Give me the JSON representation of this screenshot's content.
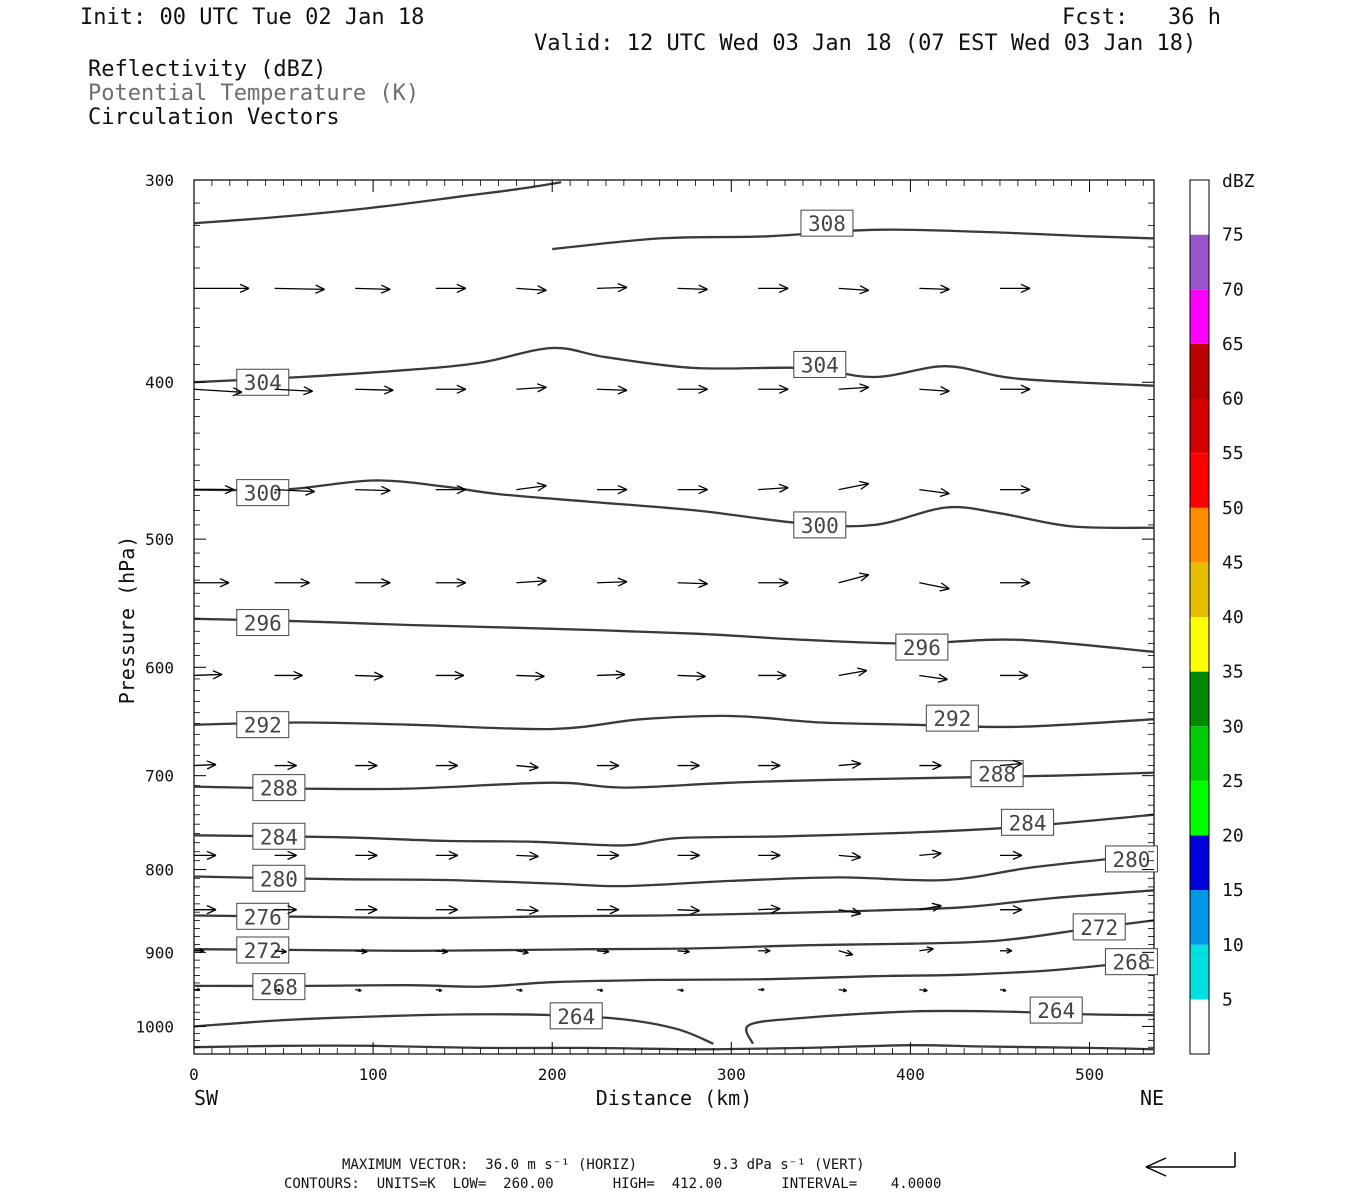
{
  "header": {
    "init": "Init: 00 UTC Tue 02 Jan 18",
    "fcst": "Fcst:   36 h",
    "valid": "Valid: 12 UTC Wed 03 Jan 18 (07 EST Wed 03 Jan 18)",
    "line1": "Reflectivity (dBZ)",
    "line2": "Potential Temperature (K)",
    "line3": "Circulation Vectors"
  },
  "footer": {
    "line1": "MAXIMUM VECTOR:  36.0 m s⁻¹ (HORIZ)         9.3 dPa s⁻¹ (VERT)",
    "line2": "CONTOURS:  UNITS=K  LOW=  260.00       HIGH=  412.00       INTERVAL=    4.0000"
  },
  "colors": {
    "contour": "#3a3a3a",
    "bands": [
      "#ffffff",
      "#00e0e0",
      "#0099e6",
      "#0000dd",
      "#00ff00",
      "#00cc00",
      "#008800",
      "#ffff00",
      "#e6bf00",
      "#ff8c00",
      "#ff0000",
      "#d40000",
      "#bb0000",
      "#ff00ff",
      "#9955cc",
      "#ffffff"
    ]
  },
  "chart_data": {
    "type": "contour",
    "xlabel": "Distance (km)",
    "ylabel": "Pressure (hPa)",
    "x_ticks": [
      "0",
      "100",
      "200",
      "300",
      "400",
      "500"
    ],
    "y_ticks": [
      "300",
      "400",
      "500",
      "600",
      "700",
      "800",
      "900",
      "1000"
    ],
    "xlim": [
      0,
      536
    ],
    "ylim": [
      1040,
      300
    ],
    "y_scale": "log",
    "left_end_label": "SW",
    "right_end_label": "NE",
    "colorbar": {
      "title": "dBZ",
      "ticks": [
        "5",
        "10",
        "15",
        "20",
        "25",
        "30",
        "35",
        "40",
        "45",
        "50",
        "55",
        "60",
        "65",
        "70",
        "75"
      ]
    },
    "contours": [
      {
        "label": "308",
        "label_at": [
          340,
          319
        ],
        "points": [
          [
            0,
            319
          ],
          [
            50,
            316
          ],
          [
            100,
            312
          ],
          [
            150,
            307
          ],
          [
            180,
            304
          ],
          [
            205,
            301
          ]
        ],
        "points2": [
          [
            200,
            331
          ],
          [
            260,
            326
          ],
          [
            320,
            325
          ],
          [
            380,
            322
          ],
          [
            440,
            323
          ],
          [
            500,
            325
          ],
          [
            536,
            326
          ]
        ]
      },
      {
        "label": "304",
        "label_at": [
          336,
          390
        ],
        "label2": "304",
        "label2_at": [
          25,
          400
        ],
        "points": [
          [
            0,
            400
          ],
          [
            60,
            397
          ],
          [
            120,
            393
          ],
          [
            160,
            389
          ],
          [
            200,
            381
          ],
          [
            230,
            386
          ],
          [
            280,
            392
          ],
          [
            340,
            392
          ],
          [
            380,
            397
          ],
          [
            420,
            391
          ],
          [
            460,
            398
          ],
          [
            536,
            402
          ]
        ]
      },
      {
        "label": "300",
        "label_at": [
          336,
          490
        ],
        "label2": "300",
        "label2_at": [
          25,
          468
        ],
        "points": [
          [
            0,
            466
          ],
          [
            50,
            466
          ],
          [
            100,
            460
          ],
          [
            140,
            464
          ],
          [
            170,
            469
          ],
          [
            220,
            474
          ],
          [
            280,
            480
          ],
          [
            340,
            489
          ],
          [
            380,
            490
          ],
          [
            420,
            478
          ],
          [
            450,
            482
          ],
          [
            490,
            491
          ],
          [
            536,
            492
          ]
        ]
      },
      {
        "label": "296",
        "label_at": [
          393,
          583
        ],
        "label2": "296",
        "label2_at": [
          25,
          563
        ],
        "points": [
          [
            0,
            560
          ],
          [
            60,
            562
          ],
          [
            120,
            565
          ],
          [
            200,
            568
          ],
          [
            280,
            572
          ],
          [
            340,
            577
          ],
          [
            400,
            580
          ],
          [
            460,
            577
          ],
          [
            536,
            587
          ]
        ]
      },
      {
        "label": "292",
        "label_at": [
          410,
          645
        ],
        "label2": "292",
        "label2_at": [
          25,
          651
        ],
        "points": [
          [
            0,
            651
          ],
          [
            60,
            649
          ],
          [
            120,
            651
          ],
          [
            200,
            655
          ],
          [
            250,
            646
          ],
          [
            300,
            643
          ],
          [
            350,
            649
          ],
          [
            400,
            651
          ],
          [
            460,
            653
          ],
          [
            536,
            646
          ]
        ]
      },
      {
        "label": "288",
        "label_at": [
          435,
          698
        ],
        "label2": "288",
        "label2_at": [
          34,
          712
        ],
        "points": [
          [
            0,
            711
          ],
          [
            60,
            713
          ],
          [
            120,
            713
          ],
          [
            200,
            707
          ],
          [
            240,
            712
          ],
          [
            300,
            707
          ],
          [
            360,
            704
          ],
          [
            420,
            702
          ],
          [
            480,
            700
          ],
          [
            536,
            697
          ]
        ]
      },
      {
        "label": "284",
        "label_at": [
          452,
          748
        ],
        "label2": "284",
        "label2_at": [
          34,
          763
        ],
        "points": [
          [
            0,
            762
          ],
          [
            80,
            764
          ],
          [
            140,
            768
          ],
          [
            190,
            769
          ],
          [
            240,
            773
          ],
          [
            270,
            765
          ],
          [
            330,
            763
          ],
          [
            400,
            759
          ],
          [
            460,
            753
          ],
          [
            536,
            740
          ]
        ]
      },
      {
        "label": "280",
        "label_at": [
          510,
          788
        ],
        "label2": "280",
        "label2_at": [
          34,
          810
        ],
        "points": [
          [
            0,
            808
          ],
          [
            80,
            811
          ],
          [
            140,
            812
          ],
          [
            200,
            816
          ],
          [
            240,
            819
          ],
          [
            300,
            813
          ],
          [
            360,
            809
          ],
          [
            420,
            812
          ],
          [
            470,
            797
          ],
          [
            536,
            783
          ]
        ]
      },
      {
        "label": "276",
        "label_at": [
          25,
          855
        ],
        "points": [
          [
            0,
            854
          ],
          [
            80,
            856
          ],
          [
            140,
            857
          ],
          [
            200,
            855
          ],
          [
            260,
            854
          ],
          [
            330,
            851
          ],
          [
            380,
            848
          ],
          [
            430,
            844
          ],
          [
            480,
            833
          ],
          [
            536,
            824
          ]
        ]
      },
      {
        "label": "272",
        "label_at": [
          492,
          868
        ],
        "label2": "272",
        "label2_at": [
          25,
          897
        ],
        "points": [
          [
            0,
            896
          ],
          [
            60,
            897
          ],
          [
            120,
            898
          ],
          [
            180,
            897
          ],
          [
            220,
            896
          ],
          [
            280,
            895
          ],
          [
            340,
            891
          ],
          [
            400,
            889
          ],
          [
            450,
            885
          ],
          [
            500,
            870
          ],
          [
            536,
            860
          ]
        ]
      },
      {
        "label": "268",
        "label_at": [
          510,
          912
        ],
        "label2": "268",
        "label2_at": [
          34,
          945
        ],
        "points": [
          [
            0,
            944
          ],
          [
            60,
            944
          ],
          [
            120,
            943
          ],
          [
            160,
            945
          ],
          [
            200,
            939
          ],
          [
            260,
            936
          ],
          [
            320,
            935
          ],
          [
            380,
            931
          ],
          [
            430,
            929
          ],
          [
            480,
            923
          ],
          [
            536,
            910
          ]
        ]
      },
      {
        "label": "264",
        "label_at": [
          200,
          985
        ],
        "label2": "264",
        "label2_at": [
          468,
          977
        ],
        "points": [
          [
            0,
            1000
          ],
          [
            50,
            991
          ],
          [
            100,
            986
          ],
          [
            150,
            983
          ],
          [
            200,
            984
          ],
          [
            240,
            990
          ],
          [
            270,
            1004
          ],
          [
            290,
            1025
          ]
        ],
        "points2": [
          [
            312,
            1025
          ],
          [
            310,
            998
          ],
          [
            340,
            988
          ],
          [
            400,
            979
          ],
          [
            450,
            979
          ],
          [
            500,
            983
          ],
          [
            536,
            984
          ]
        ]
      },
      {
        "label": "",
        "label_at": [
          0,
          0
        ],
        "points": [
          [
            0,
            1030
          ],
          [
            50,
            1028
          ],
          [
            100,
            1028
          ],
          [
            160,
            1031
          ],
          [
            220,
            1031
          ],
          [
            280,
            1033
          ],
          [
            340,
            1031
          ],
          [
            400,
            1027
          ],
          [
            440,
            1029
          ],
          [
            500,
            1031
          ],
          [
            536,
            1033
          ]
        ]
      }
    ],
    "vector_scale": {
      "horizontal_max": "36.0 m s-1",
      "vertical_max": "9.3 dPa s-1"
    },
    "vectors": [
      {
        "p": 350,
        "us": [
          [
            55,
            0
          ],
          [
            50,
            1
          ],
          [
            35,
            1
          ],
          [
            30,
            0
          ],
          [
            30,
            2
          ],
          [
            30,
            -1
          ],
          [
            30,
            1
          ],
          [
            30,
            0
          ],
          [
            30,
            2
          ],
          [
            30,
            1
          ],
          [
            30,
            0
          ]
        ]
      },
      {
        "p": 404,
        "us": [
          [
            48,
            3
          ],
          [
            38,
            2
          ],
          [
            38,
            1
          ],
          [
            30,
            0
          ],
          [
            30,
            -2
          ],
          [
            30,
            1
          ],
          [
            30,
            0
          ],
          [
            30,
            0
          ],
          [
            30,
            -2
          ],
          [
            30,
            2
          ],
          [
            30,
            0
          ]
        ]
      },
      {
        "p": 466,
        "us": [
          [
            40,
            0
          ],
          [
            40,
            2
          ],
          [
            35,
            1
          ],
          [
            30,
            0
          ],
          [
            30,
            -4
          ],
          [
            30,
            0
          ],
          [
            30,
            0
          ],
          [
            30,
            -2
          ],
          [
            30,
            -6
          ],
          [
            30,
            4
          ],
          [
            30,
            0
          ]
        ]
      },
      {
        "p": 532,
        "us": [
          [
            35,
            0
          ],
          [
            35,
            0
          ],
          [
            35,
            0
          ],
          [
            30,
            0
          ],
          [
            30,
            -2
          ],
          [
            30,
            -1
          ],
          [
            30,
            1
          ],
          [
            30,
            0
          ],
          [
            30,
            -8
          ],
          [
            30,
            6
          ],
          [
            30,
            0
          ]
        ]
      },
      {
        "p": 607,
        "us": [
          [
            28,
            -1
          ],
          [
            28,
            0
          ],
          [
            28,
            1
          ],
          [
            28,
            0
          ],
          [
            28,
            1
          ],
          [
            28,
            -1
          ],
          [
            28,
            1
          ],
          [
            28,
            0
          ],
          [
            28,
            -5
          ],
          [
            28,
            4
          ],
          [
            28,
            0
          ]
        ]
      },
      {
        "p": 690,
        "us": [
          [
            22,
            -1
          ],
          [
            22,
            0
          ],
          [
            22,
            0
          ],
          [
            22,
            0
          ],
          [
            22,
            2
          ],
          [
            22,
            0
          ],
          [
            22,
            0
          ],
          [
            22,
            0
          ],
          [
            22,
            -2
          ],
          [
            22,
            0
          ],
          [
            22,
            -2
          ]
        ]
      },
      {
        "p": 784,
        "us": [
          [
            22,
            0
          ],
          [
            22,
            0
          ],
          [
            22,
            0
          ],
          [
            22,
            0
          ],
          [
            22,
            1
          ],
          [
            22,
            0
          ],
          [
            22,
            0
          ],
          [
            22,
            0
          ],
          [
            22,
            2
          ],
          [
            22,
            -2
          ],
          [
            22,
            0
          ]
        ]
      },
      {
        "p": 847,
        "us": [
          [
            22,
            0
          ],
          [
            22,
            0
          ],
          [
            22,
            0
          ],
          [
            22,
            0
          ],
          [
            22,
            1
          ],
          [
            22,
            0
          ],
          [
            22,
            1
          ],
          [
            22,
            -1
          ],
          [
            22,
            4
          ],
          [
            22,
            -4
          ],
          [
            22,
            0
          ]
        ]
      },
      {
        "p": 898,
        "us": [
          [
            10,
            0
          ],
          [
            12,
            1
          ],
          [
            12,
            1
          ],
          [
            12,
            1
          ],
          [
            12,
            2
          ],
          [
            12,
            1
          ],
          [
            12,
            1
          ],
          [
            12,
            0
          ],
          [
            14,
            4
          ],
          [
            14,
            -2
          ],
          [
            12,
            0
          ]
        ]
      },
      {
        "p": 949,
        "us": [
          [
            6,
            0
          ],
          [
            6,
            1
          ],
          [
            6,
            1
          ],
          [
            6,
            1
          ],
          [
            6,
            1
          ],
          [
            6,
            1
          ],
          [
            6,
            1
          ],
          [
            6,
            0
          ],
          [
            8,
            1
          ],
          [
            8,
            1
          ],
          [
            6,
            1
          ]
        ]
      }
    ]
  }
}
